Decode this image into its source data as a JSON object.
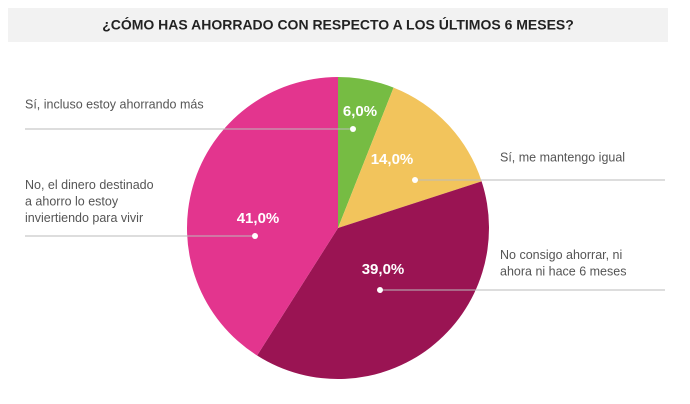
{
  "chart_data": {
    "type": "pie",
    "title": "¿CÓMO HAS AHORRADO CON RESPECTO A LOS ÚLTIMOS 6 MESES?",
    "categories": [
      "Sí, incluso estoy ahorrando más",
      "Sí, me mantengo igual",
      "No consigo ahorrar, ni\nahora ni hace 6 meses",
      "No, el dinero destinado\na ahorro lo estoy\ninviertiendo para vivir"
    ],
    "values": [
      6,
      14,
      39,
      41
    ],
    "value_labels": [
      "6,0%",
      "14,0%",
      "39,0%",
      "41,0%"
    ],
    "colors": [
      "#76bc43",
      "#f2c45c",
      "#9a1453",
      "#e3358e"
    ]
  }
}
